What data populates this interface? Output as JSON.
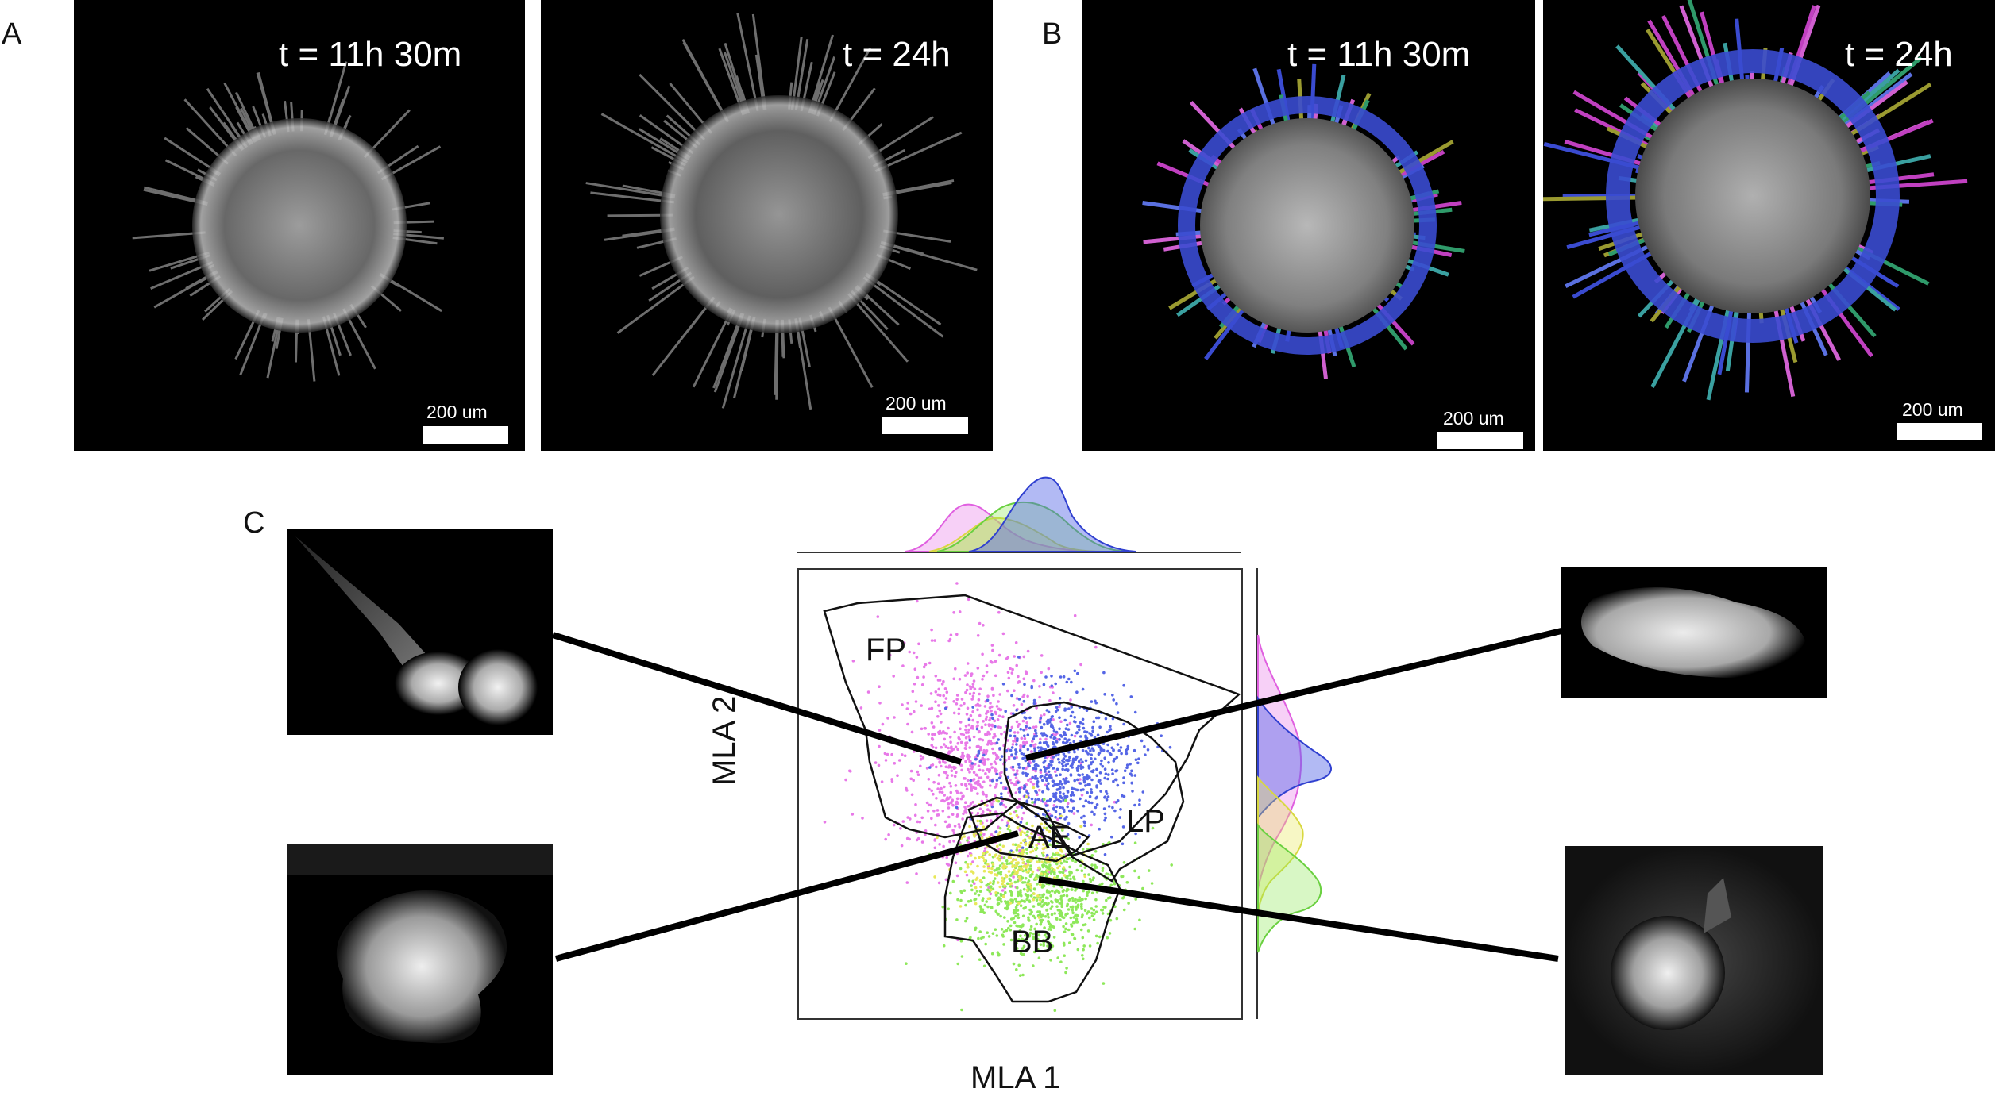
{
  "panels": {
    "A": {
      "label": "A",
      "images": [
        {
          "time": "t = 11h 30m",
          "scalebar": "200 um"
        },
        {
          "time": "t = 24h",
          "scalebar": "200 um"
        }
      ]
    },
    "B": {
      "label": "B",
      "images": [
        {
          "time": "t = 11h 30m",
          "scalebar": "200 um"
        },
        {
          "time": "t = 24h",
          "scalebar": "200 um"
        }
      ]
    },
    "C": {
      "label": "C"
    }
  },
  "chart_data": {
    "type": "scatter",
    "xlabel": "MLA 1",
    "ylabel": "MLA 2",
    "grid": false,
    "region_labels": [
      "FP",
      "LP",
      "AE",
      "BB"
    ],
    "clusters": [
      {
        "region": "FP",
        "color": "#e879e8"
      },
      {
        "region": "LP",
        "color": "#5566e6"
      },
      {
        "region": "AE",
        "color": "#e8e85a"
      },
      {
        "region": "BB",
        "color": "#8ee85a"
      }
    ],
    "marginals": "density curves per cluster on top (MLA 1) and right (MLA 2)"
  },
  "colors": {
    "FP": "#e879e8",
    "LP": "#5566e6",
    "AE": "#e8e85a",
    "BB": "#8ee85a",
    "microscopy_bg": "#000000"
  }
}
